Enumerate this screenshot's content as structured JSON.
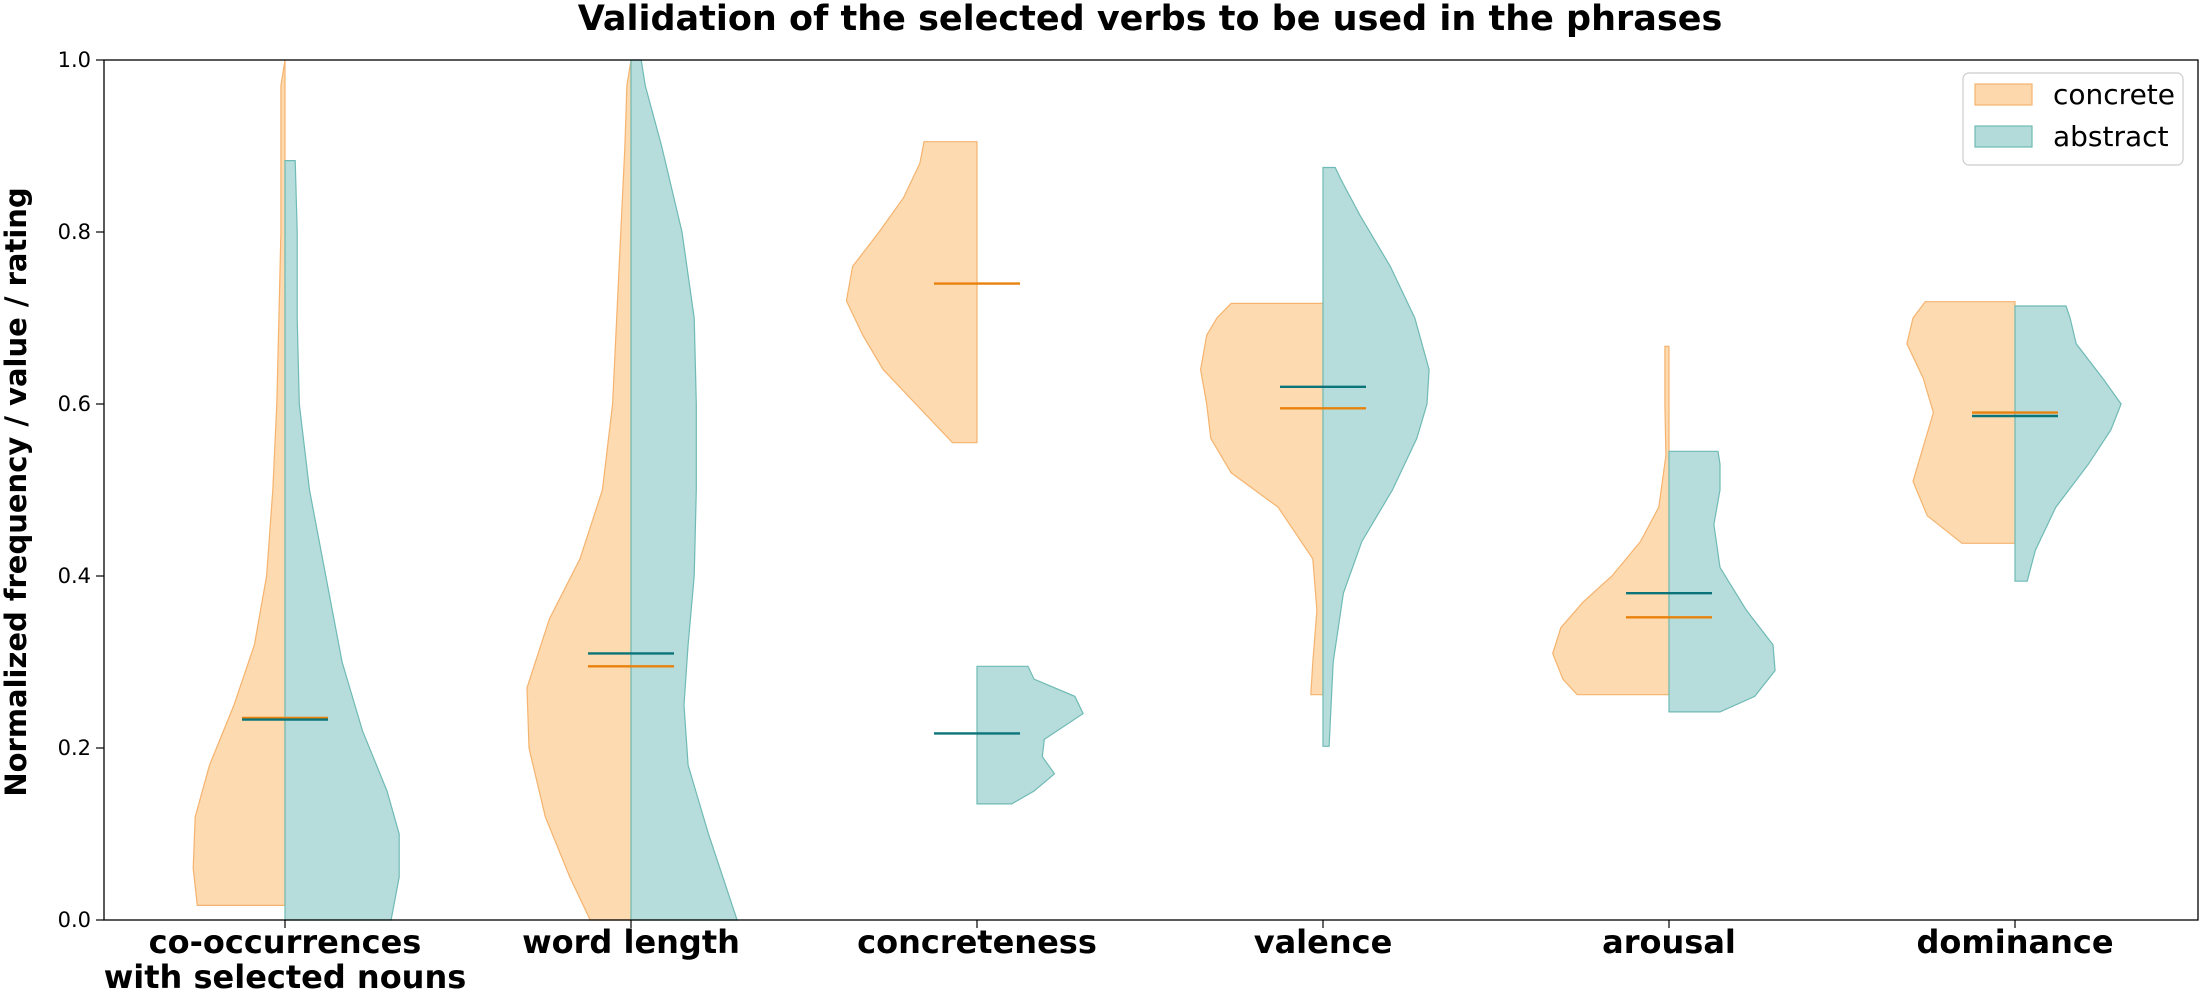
{
  "chart_data": {
    "type": "violin",
    "title": "Validation of the selected verbs to be used in the phrases",
    "ylabel": "Normalized frequency / value / rating",
    "xlabel": "",
    "ylim": [
      0,
      1
    ],
    "yticks": [
      "0.0",
      "0.2",
      "0.4",
      "0.6",
      "0.8",
      "1.0"
    ],
    "grid": false,
    "legend_position": "top-right",
    "categories": [
      [
        "co-occurrences",
        "with selected nouns"
      ],
      [
        "word length"
      ],
      [
        "concreteness"
      ],
      [
        "valence"
      ],
      [
        "arousal"
      ],
      [
        "dominance"
      ]
    ],
    "series": [
      {
        "name": "concrete",
        "side": "left",
        "fill": "#fdd8ac",
        "stroke": "#f5b36e",
        "mean_color": "#e8820c",
        "violins": [
          {
            "ymin": 0.017,
            "ymax": 1.0,
            "mean": 0.235,
            "shape": [
              [
                0.017,
                0.43
              ],
              [
                0.06,
                0.45
              ],
              [
                0.12,
                0.44
              ],
              [
                0.18,
                0.37
              ],
              [
                0.25,
                0.25
              ],
              [
                0.32,
                0.15
              ],
              [
                0.4,
                0.09
              ],
              [
                0.5,
                0.06
              ],
              [
                0.6,
                0.04
              ],
              [
                0.7,
                0.03
              ],
              [
                0.8,
                0.02
              ],
              [
                0.9,
                0.02
              ],
              [
                0.97,
                0.02
              ],
              [
                1.0,
                0.0
              ]
            ]
          },
          {
            "ymin": 0.0,
            "ymax": 1.0,
            "mean": 0.295,
            "shape": [
              [
                0.0,
                0.2
              ],
              [
                0.05,
                0.3
              ],
              [
                0.12,
                0.42
              ],
              [
                0.2,
                0.5
              ],
              [
                0.27,
                0.51
              ],
              [
                0.35,
                0.4
              ],
              [
                0.42,
                0.25
              ],
              [
                0.5,
                0.14
              ],
              [
                0.6,
                0.09
              ],
              [
                0.7,
                0.07
              ],
              [
                0.8,
                0.05
              ],
              [
                0.9,
                0.03
              ],
              [
                0.97,
                0.02
              ],
              [
                1.0,
                0.0
              ]
            ]
          },
          {
            "ymin": 0.555,
            "ymax": 0.905,
            "mean": 0.74,
            "shape": [
              [
                0.555,
                0.12
              ],
              [
                0.6,
                0.3
              ],
              [
                0.64,
                0.46
              ],
              [
                0.68,
                0.56
              ],
              [
                0.72,
                0.64
              ],
              [
                0.76,
                0.61
              ],
              [
                0.8,
                0.48
              ],
              [
                0.84,
                0.36
              ],
              [
                0.88,
                0.28
              ],
              [
                0.905,
                0.26
              ]
            ]
          },
          {
            "ymin": 0.262,
            "ymax": 0.717,
            "mean": 0.595,
            "shape": [
              [
                0.262,
                0.06
              ],
              [
                0.3,
                0.05
              ],
              [
                0.36,
                0.03
              ],
              [
                0.42,
                0.05
              ],
              [
                0.48,
                0.22
              ],
              [
                0.52,
                0.45
              ],
              [
                0.56,
                0.55
              ],
              [
                0.6,
                0.57
              ],
              [
                0.64,
                0.6
              ],
              [
                0.68,
                0.57
              ],
              [
                0.7,
                0.52
              ],
              [
                0.717,
                0.45
              ]
            ]
          },
          {
            "ymin": 0.262,
            "ymax": 0.667,
            "mean": 0.352,
            "shape": [
              [
                0.262,
                0.45
              ],
              [
                0.28,
                0.52
              ],
              [
                0.31,
                0.57
              ],
              [
                0.34,
                0.53
              ],
              [
                0.37,
                0.42
              ],
              [
                0.4,
                0.28
              ],
              [
                0.44,
                0.14
              ],
              [
                0.48,
                0.05
              ],
              [
                0.54,
                0.015
              ],
              [
                0.6,
                0.02
              ],
              [
                0.667,
                0.02
              ]
            ]
          },
          {
            "ymin": 0.438,
            "ymax": 0.719,
            "mean": 0.59,
            "shape": [
              [
                0.438,
                0.26
              ],
              [
                0.47,
                0.43
              ],
              [
                0.51,
                0.5
              ],
              [
                0.55,
                0.45
              ],
              [
                0.59,
                0.4
              ],
              [
                0.63,
                0.45
              ],
              [
                0.67,
                0.53
              ],
              [
                0.7,
                0.5
              ],
              [
                0.719,
                0.44
              ]
            ]
          }
        ]
      },
      {
        "name": "abstract",
        "side": "right",
        "fill": "#b2dbd9",
        "stroke": "#6fbab5",
        "mean_color": "#0a7478",
        "violins": [
          {
            "ymin": 0.0,
            "ymax": 0.883,
            "mean": 0.233,
            "shape": [
              [
                0.0,
                0.52
              ],
              [
                0.05,
                0.56
              ],
              [
                0.1,
                0.56
              ],
              [
                0.15,
                0.5
              ],
              [
                0.22,
                0.38
              ],
              [
                0.3,
                0.28
              ],
              [
                0.4,
                0.2
              ],
              [
                0.5,
                0.12
              ],
              [
                0.6,
                0.07
              ],
              [
                0.7,
                0.06
              ],
              [
                0.8,
                0.06
              ],
              [
                0.883,
                0.05
              ]
            ]
          },
          {
            "ymin": 0.0,
            "ymax": 1.0,
            "mean": 0.31,
            "shape": [
              [
                0.0,
                0.52
              ],
              [
                0.05,
                0.45
              ],
              [
                0.1,
                0.38
              ],
              [
                0.18,
                0.28
              ],
              [
                0.25,
                0.26
              ],
              [
                0.32,
                0.28
              ],
              [
                0.4,
                0.31
              ],
              [
                0.5,
                0.32
              ],
              [
                0.6,
                0.32
              ],
              [
                0.7,
                0.31
              ],
              [
                0.8,
                0.25
              ],
              [
                0.9,
                0.15
              ],
              [
                0.97,
                0.07
              ],
              [
                1.0,
                0.05
              ]
            ]
          },
          {
            "ymin": 0.135,
            "ymax": 0.295,
            "mean": 0.217,
            "shape": [
              [
                0.135,
                0.17
              ],
              [
                0.15,
                0.28
              ],
              [
                0.17,
                0.38
              ],
              [
                0.19,
                0.32
              ],
              [
                0.21,
                0.33
              ],
              [
                0.24,
                0.52
              ],
              [
                0.26,
                0.48
              ],
              [
                0.28,
                0.28
              ],
              [
                0.295,
                0.25
              ]
            ]
          },
          {
            "ymin": 0.202,
            "ymax": 0.875,
            "mean": 0.62,
            "shape": [
              [
                0.202,
                0.03
              ],
              [
                0.3,
                0.05
              ],
              [
                0.38,
                0.1
              ],
              [
                0.44,
                0.19
              ],
              [
                0.5,
                0.34
              ],
              [
                0.56,
                0.46
              ],
              [
                0.6,
                0.51
              ],
              [
                0.64,
                0.52
              ],
              [
                0.7,
                0.45
              ],
              [
                0.76,
                0.33
              ],
              [
                0.82,
                0.18
              ],
              [
                0.86,
                0.09
              ],
              [
                0.875,
                0.06
              ]
            ]
          },
          {
            "ymin": 0.242,
            "ymax": 0.545,
            "mean": 0.38,
            "shape": [
              [
                0.242,
                0.25
              ],
              [
                0.26,
                0.42
              ],
              [
                0.29,
                0.52
              ],
              [
                0.32,
                0.51
              ],
              [
                0.36,
                0.38
              ],
              [
                0.41,
                0.25
              ],
              [
                0.46,
                0.22
              ],
              [
                0.5,
                0.25
              ],
              [
                0.53,
                0.25
              ],
              [
                0.545,
                0.24
              ]
            ]
          },
          {
            "ymin": 0.394,
            "ymax": 0.714,
            "mean": 0.586,
            "shape": [
              [
                0.394,
                0.06
              ],
              [
                0.43,
                0.1
              ],
              [
                0.48,
                0.2
              ],
              [
                0.53,
                0.36
              ],
              [
                0.57,
                0.47
              ],
              [
                0.6,
                0.52
              ],
              [
                0.63,
                0.43
              ],
              [
                0.67,
                0.3
              ],
              [
                0.7,
                0.27
              ],
              [
                0.714,
                0.25
              ]
            ]
          }
        ]
      }
    ]
  }
}
